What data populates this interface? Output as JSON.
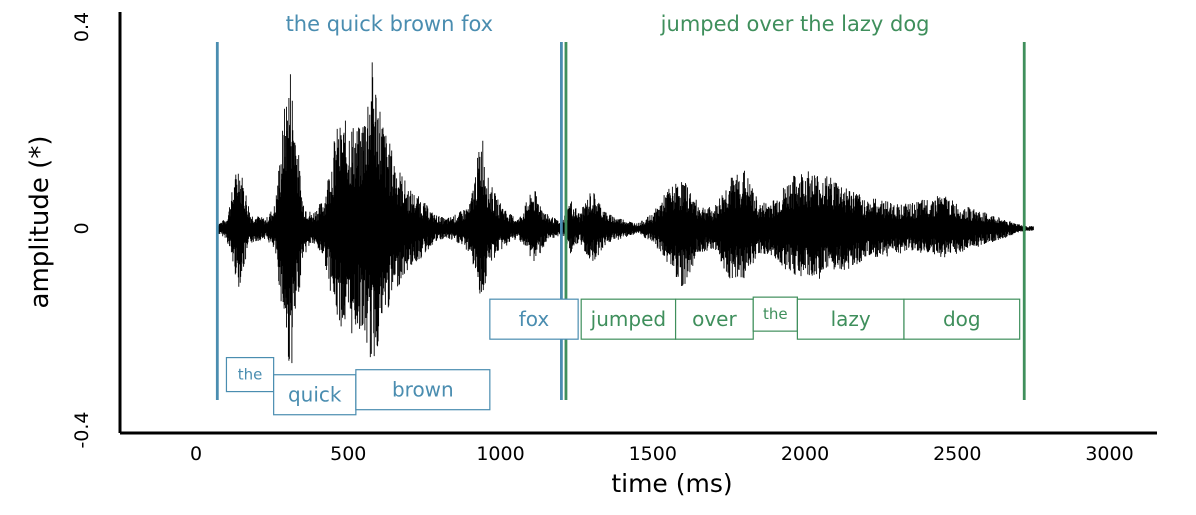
{
  "chart_data": {
    "type": "line",
    "xlabel": "time (ms)",
    "ylabel": "amplitude (*)",
    "xlim": [
      -250,
      3050
    ],
    "ylim": [
      -0.4,
      0.4
    ],
    "x_ticks": [
      0,
      500,
      1000,
      1500,
      2000,
      2500,
      3000
    ],
    "x_tick_labels": [
      "0",
      "500",
      "1000",
      "1500",
      "2000",
      "2500",
      "3000"
    ],
    "y_ticks": [
      0.4,
      0,
      -0.4
    ],
    "y_tick_labels": [
      "0.4",
      "0",
      "-0.4"
    ],
    "colors": {
      "phrase1": "#4a8db0",
      "phrase2": "#3f8f5c",
      "waveform": "#000000"
    },
    "phrases": [
      {
        "label": "the quick brown fox",
        "start": 70,
        "end": 1200,
        "color": "#4a8db0"
      },
      {
        "label": "jumped over the lazy dog",
        "start": 1215,
        "end": 2720,
        "color": "#3f8f5c"
      }
    ],
    "words": [
      {
        "label": "the",
        "start": 100,
        "end": 255,
        "color": "#4a8db0",
        "level": -0.29,
        "small": true
      },
      {
        "label": "quick",
        "start": 255,
        "end": 525,
        "color": "#4a8db0",
        "level": -0.33
      },
      {
        "label": "brown",
        "start": 525,
        "end": 965,
        "color": "#4a8db0",
        "level": -0.32
      },
      {
        "label": "fox",
        "start": 965,
        "end": 1255,
        "color": "#4a8db0",
        "level": -0.18
      },
      {
        "label": "jumped",
        "start": 1265,
        "end": 1575,
        "color": "#3f8f5c",
        "level": -0.18
      },
      {
        "label": "over",
        "start": 1575,
        "end": 1830,
        "color": "#3f8f5c",
        "level": -0.18
      },
      {
        "label": "the",
        "start": 1830,
        "end": 1975,
        "color": "#3f8f5c",
        "level": -0.17,
        "small": true
      },
      {
        "label": "lazy",
        "start": 1975,
        "end": 2325,
        "color": "#3f8f5c",
        "level": -0.18
      },
      {
        "label": "dog",
        "start": 2325,
        "end": 2705,
        "color": "#3f8f5c",
        "level": -0.18
      }
    ],
    "waveform_envelope": {
      "x": [
        70,
        100,
        140,
        180,
        230,
        260,
        290,
        310,
        330,
        350,
        380,
        420,
        460,
        500,
        540,
        580,
        620,
        660,
        700,
        740,
        780,
        820,
        860,
        900,
        940,
        960,
        990,
        1030,
        1060,
        1090,
        1110,
        1150,
        1180,
        1200,
        1230,
        1260,
        1300,
        1350,
        1400,
        1450,
        1500,
        1550,
        1600,
        1650,
        1700,
        1750,
        1800,
        1850,
        1900,
        1950,
        2000,
        2050,
        2100,
        2150,
        2200,
        2250,
        2300,
        2350,
        2400,
        2450,
        2500,
        2550,
        2600,
        2650,
        2700,
        2720
      ],
      "upper": [
        0.01,
        0.02,
        0.14,
        0.03,
        0.02,
        0.05,
        0.24,
        0.33,
        0.2,
        0.06,
        0.03,
        0.06,
        0.2,
        0.22,
        0.2,
        0.34,
        0.2,
        0.13,
        0.08,
        0.06,
        0.03,
        0.02,
        0.03,
        0.05,
        0.2,
        0.1,
        0.06,
        0.03,
        0.02,
        0.06,
        0.08,
        0.03,
        0.02,
        0.01,
        0.06,
        0.03,
        0.08,
        0.03,
        0.02,
        0.01,
        0.03,
        0.08,
        0.1,
        0.05,
        0.04,
        0.1,
        0.12,
        0.05,
        0.06,
        0.1,
        0.12,
        0.11,
        0.1,
        0.08,
        0.06,
        0.06,
        0.05,
        0.05,
        0.06,
        0.07,
        0.05,
        0.04,
        0.03,
        0.02,
        0.01,
        0.005
      ],
      "lower": [
        -0.01,
        -0.02,
        -0.12,
        -0.03,
        -0.02,
        -0.05,
        -0.2,
        -0.3,
        -0.18,
        -0.06,
        -0.03,
        -0.06,
        -0.18,
        -0.22,
        -0.2,
        -0.28,
        -0.18,
        -0.12,
        -0.08,
        -0.06,
        -0.03,
        -0.02,
        -0.03,
        -0.05,
        -0.15,
        -0.08,
        -0.05,
        -0.03,
        -0.02,
        -0.05,
        -0.07,
        -0.03,
        -0.02,
        -0.01,
        -0.05,
        -0.03,
        -0.07,
        -0.03,
        -0.02,
        -0.01,
        -0.03,
        -0.07,
        -0.12,
        -0.05,
        -0.04,
        -0.1,
        -0.1,
        -0.05,
        -0.06,
        -0.09,
        -0.1,
        -0.1,
        -0.09,
        -0.08,
        -0.06,
        -0.06,
        -0.05,
        -0.05,
        -0.05,
        -0.06,
        -0.05,
        -0.04,
        -0.03,
        -0.02,
        -0.01,
        -0.005
      ]
    }
  }
}
